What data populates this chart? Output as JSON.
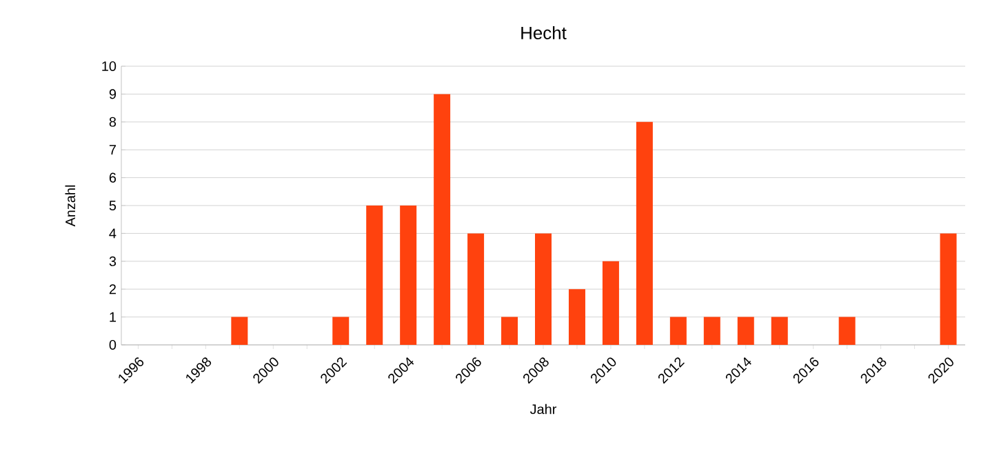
{
  "chart_data": {
    "type": "bar",
    "title": "Hecht",
    "xlabel": "Jahr",
    "ylabel": "Anzahl",
    "categories": [
      "1996",
      null,
      "1998",
      null,
      "2000",
      null,
      "2002",
      null,
      "2004",
      null,
      "2006",
      null,
      "2008",
      null,
      "2010",
      null,
      "2012",
      null,
      "2014",
      null,
      "2016",
      null,
      "2018",
      null,
      "2020"
    ],
    "values": [
      0,
      0,
      0,
      1,
      0,
      0,
      1,
      5,
      5,
      9,
      4,
      1,
      4,
      2,
      3,
      8,
      1,
      1,
      1,
      1,
      0,
      1,
      0,
      0,
      4
    ],
    "color": "#ff420e",
    "ylim": [
      0,
      10
    ],
    "yticks": [
      0,
      1,
      2,
      3,
      4,
      5,
      6,
      7,
      8,
      9,
      10
    ],
    "grid": "y"
  }
}
